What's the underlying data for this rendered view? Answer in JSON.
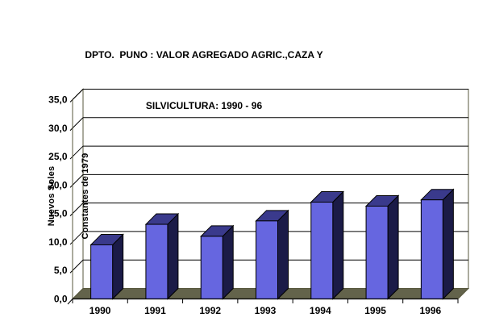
{
  "title": {
    "line1": "DPTO.  PUNO : VALOR AGREGADO AGRIC.,CAZA Y",
    "line2": "SILVICULTURA: 1990 - 96"
  },
  "y_axis_title": {
    "line1": "Nuevos Soles",
    "line2": "Constantes de 1979"
  },
  "chart_data": {
    "type": "bar",
    "style": "3d-column",
    "title": "DPTO.  PUNO : VALOR AGREGADO AGRIC.,CAZA Y SILVICULTURA: 1990 - 96",
    "ylabel": "Nuevos Soles Constantes de 1979",
    "xlabel": "",
    "categories": [
      "1990",
      "1991",
      "1992",
      "1993",
      "1994",
      "1995",
      "1996"
    ],
    "values": [
      9.5,
      13.1,
      11.0,
      13.7,
      17.0,
      16.3,
      17.4
    ],
    "ylim": [
      0,
      35
    ],
    "ytick_step": 5,
    "ytick_labels": [
      "0,0",
      "5,0",
      "10,0",
      "15,0",
      "20,0",
      "25,0",
      "30,0",
      "35,0"
    ],
    "grid": true,
    "legend": false,
    "colors": {
      "bar_front": "#6666E0",
      "bar_top": "#3A3A8C",
      "bar_side": "#1B1B47",
      "bar_outline": "#000000",
      "floor": "#63634B",
      "wall_fill": "#FFFFFF",
      "wall_edge": "#57573D",
      "gridline": "#000000",
      "axis_line": "#000000",
      "text": "#000000",
      "background": "#FFFFFF"
    }
  }
}
